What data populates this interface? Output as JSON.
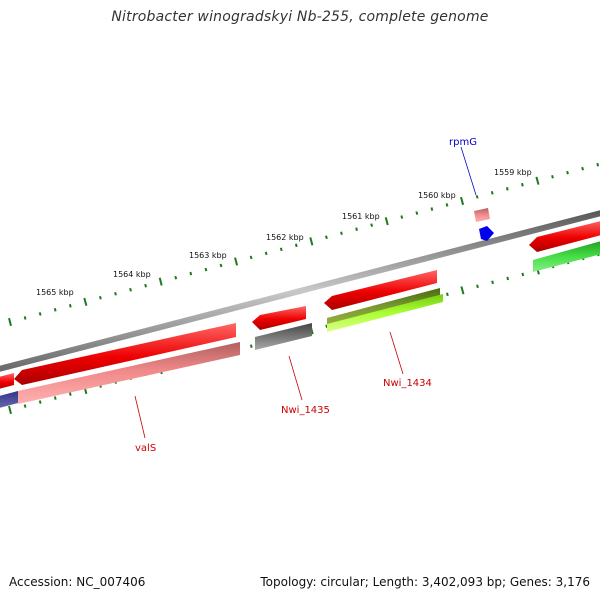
{
  "title": "Nitrobacter winogradskyi Nb-255, complete genome",
  "accession": "Accession: NC_007406",
  "summary": "Topology: circular; Length: 3,402,093 bp; Genes: 3,176",
  "ticks": [
    "1565 kbp",
    "1564 kbp",
    "1563 kbp",
    "1562 kbp",
    "1561 kbp",
    "1560 kbp",
    "1559 kbp"
  ],
  "gene_labels": {
    "rpmG": "rpmG",
    "valS": "valS",
    "Nwi_1435": "Nwi_1435",
    "Nwi_1434": "Nwi_1434"
  },
  "colors": {
    "backbone": "#8a8a8a",
    "cds": "#ee1111",
    "cds_light": "#f08a8a",
    "dashes": "#1f7a1f",
    "label_red": "#cc0000",
    "label_blue": "#0000cc",
    "rrna_blue": "#0000ee",
    "olive": "#6b8e23",
    "lime": "#aaff33",
    "green": "#33cc33",
    "gray_gene": "#666666",
    "navy": "#4a4a99"
  }
}
